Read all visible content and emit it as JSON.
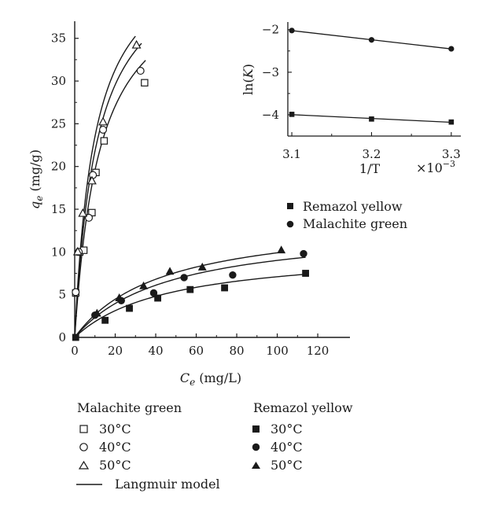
{
  "chart_data": [
    {
      "type": "scatter",
      "xlabel": {
        "main": "C",
        "sub": "e",
        "unit": " (mg/L)"
      },
      "ylabel": {
        "main": "q",
        "sub": "e",
        "unit": " (mg/g)"
      },
      "xlim": [
        0,
        130
      ],
      "ylim": [
        0,
        37
      ],
      "x_ticks": [
        "0",
        "20",
        "40",
        "60",
        "80",
        "100",
        "120"
      ],
      "y_ticks": [
        "0",
        "5",
        "10",
        "15",
        "20",
        "25",
        "30",
        "35"
      ],
      "grid": false,
      "series": [
        {
          "name": "30°C",
          "dye": "Malachite green",
          "marker": "square-open",
          "x": [
            0.5,
            2.5,
            4.5,
            8.5,
            10.5,
            14.5,
            34.5
          ],
          "y": [
            5.2,
            10,
            10.2,
            14.6,
            19.3,
            23,
            29.8
          ]
        },
        {
          "name": "40°C",
          "dye": "Malachite green",
          "marker": "circle-open",
          "x": [
            0.5,
            2,
            7,
            9,
            14,
            32.5
          ],
          "y": [
            5.3,
            10,
            14,
            19,
            24.3,
            31.2
          ]
        },
        {
          "name": "50°C",
          "dye": "Malachite green",
          "marker": "triangle-open",
          "x": [
            1.5,
            4,
            8.5,
            14,
            30.5
          ],
          "y": [
            10,
            14.5,
            18.3,
            25.2,
            34.2
          ]
        },
        {
          "name": "30°C",
          "dye": "Remazol yellow",
          "marker": "square-filled",
          "x": [
            0.5,
            15,
            27,
            41,
            57,
            74,
            114
          ],
          "y": [
            0,
            2,
            3.4,
            4.6,
            5.6,
            5.8,
            7.5
          ]
        },
        {
          "name": "40°C",
          "dye": "Remazol yellow",
          "marker": "circle-filled",
          "x": [
            10,
            23,
            39,
            54,
            78,
            113
          ],
          "y": [
            2.6,
            4.3,
            5.2,
            7,
            7.3,
            9.8
          ]
        },
        {
          "name": "50°C",
          "dye": "Remazol yellow",
          "marker": "triangle-filled",
          "x": [
            11,
            22,
            34,
            47,
            63,
            102
          ],
          "y": [
            2.8,
            4.6,
            6,
            7.7,
            8.2,
            10.2
          ]
        }
      ],
      "langmuir_fits": [
        {
          "qmax": 44,
          "KL": 0.08,
          "xmax": 35
        },
        {
          "qmax": 46,
          "KL": 0.09,
          "xmax": 33
        },
        {
          "qmax": 47,
          "KL": 0.1,
          "xmax": 30
        },
        {
          "qmax": 10.4,
          "KL": 0.0215,
          "xmax": 115
        },
        {
          "qmax": 13.2,
          "KL": 0.0215,
          "xmax": 114
        },
        {
          "qmax": 14.2,
          "KL": 0.023,
          "xmax": 103
        }
      ]
    },
    {
      "type": "scatter",
      "role": "inset",
      "xlabel": "1/T",
      "ylabel": {
        "main": "ln(",
        "var": "K",
        "close": ")"
      },
      "x_multiplier": {
        "base": "×10",
        "exp": "−3"
      },
      "xlim": [
        3.095,
        3.312
      ],
      "ylim": [
        -4.5,
        -1.82
      ],
      "x_ticks": [
        "3.1",
        "3.2",
        "3.3"
      ],
      "x_tick_values": [
        3.1,
        3.2,
        3.3
      ],
      "y_ticks": [
        "−2",
        "−3",
        "−4"
      ],
      "y_tick_values": [
        -2,
        -3,
        -4
      ],
      "series": [
        {
          "name": "Remazol yellow",
          "marker": "square-filled",
          "x": [
            3.1,
            3.2,
            3.3
          ],
          "y": [
            -3.99,
            -4.1,
            -4.17
          ]
        },
        {
          "name": "Malachite green",
          "marker": "circle-filled",
          "x": [
            3.1,
            3.2,
            3.3
          ],
          "y": [
            -2.02,
            -2.24,
            -2.45
          ]
        }
      ]
    }
  ],
  "legend": {
    "malachite_title": "Malachite green",
    "remazol_title": "Remazol yellow",
    "malachite_items": [
      "30°C",
      "40°C",
      "50°C"
    ],
    "remazol_items": [
      "30°C",
      "40°C",
      "50°C"
    ],
    "model_label": "Langmuir model"
  },
  "inset_legend": [
    "Remazol yellow",
    "Malachite green"
  ]
}
